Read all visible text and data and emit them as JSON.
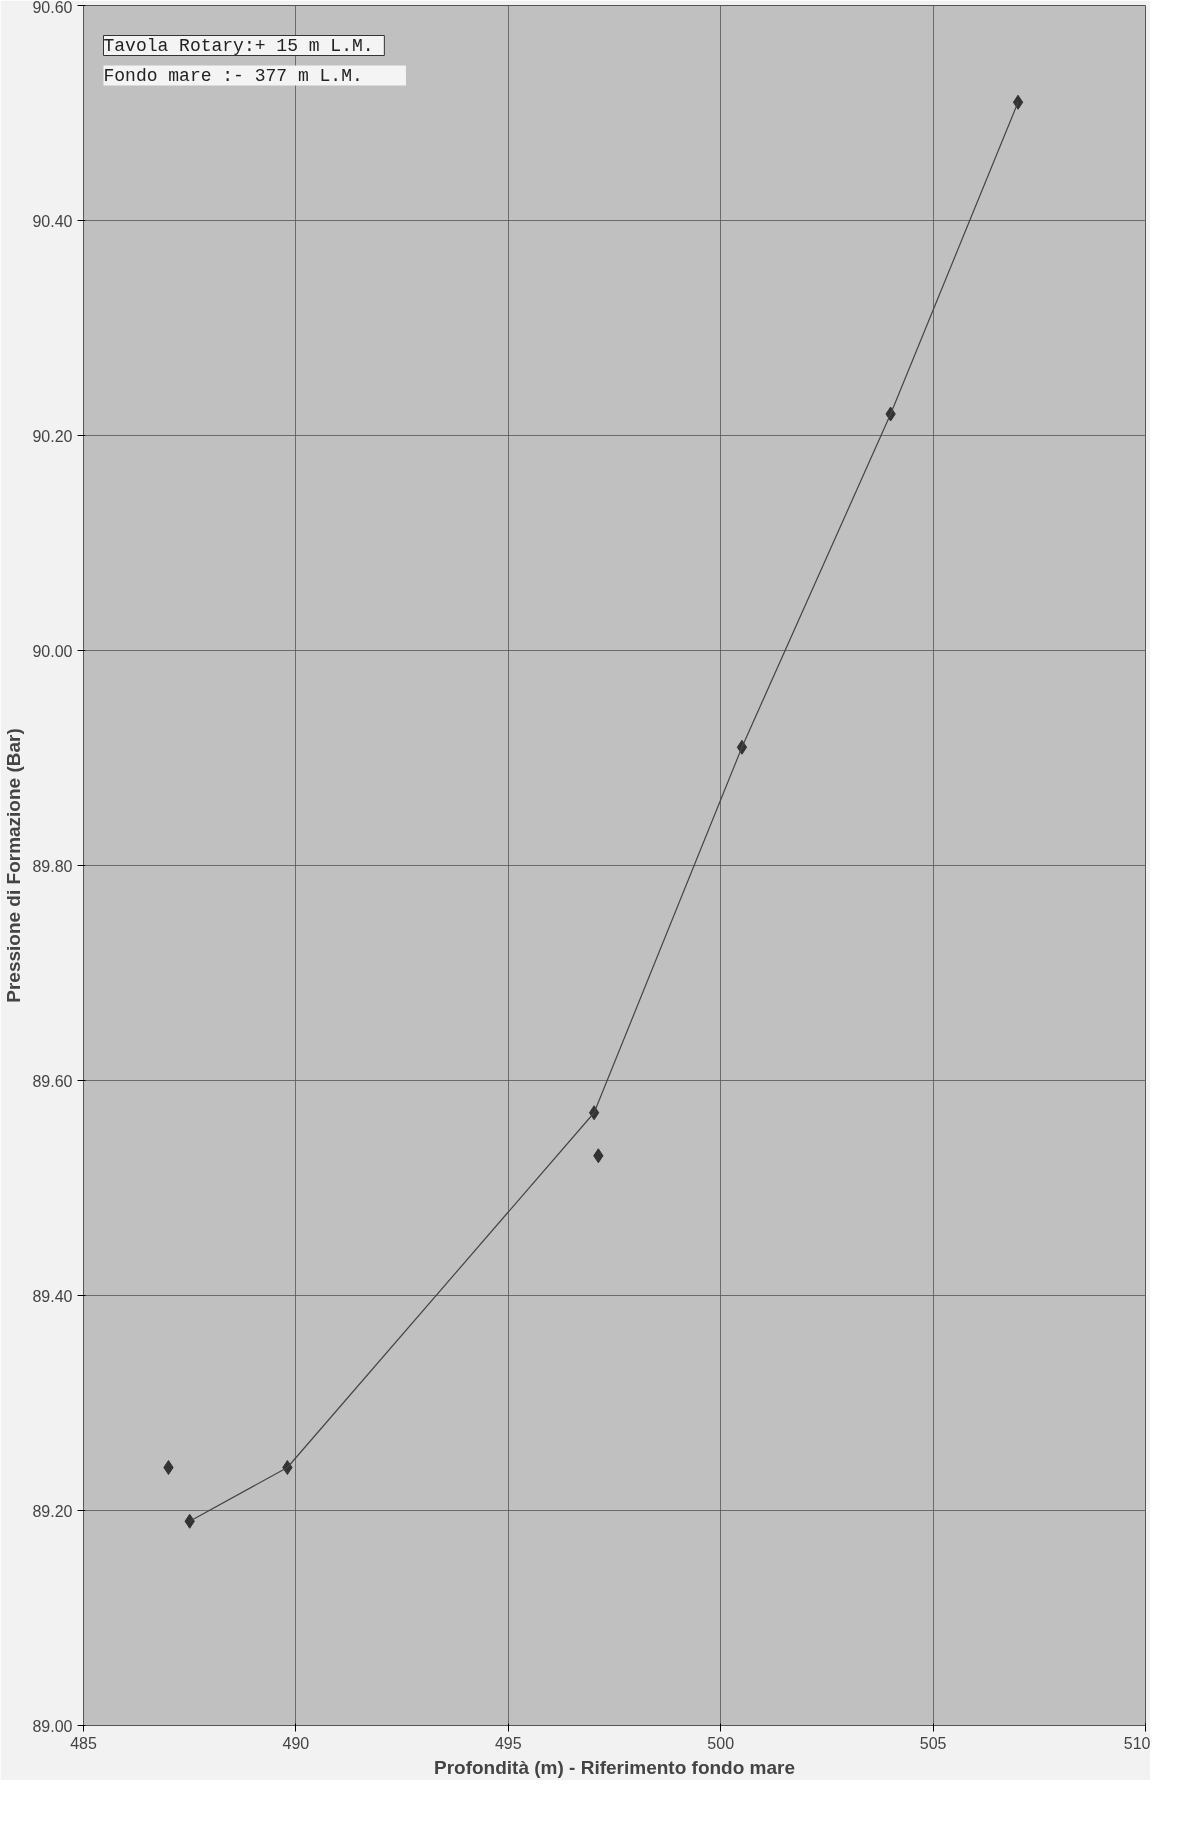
{
  "chart_data": {
    "type": "scatter",
    "ylabel": "Pressione di Formazione (Bar)",
    "xlabel": "Profondità (m) - Riferimento fondo mare",
    "annotations": [
      "Tavola Rotary:+  15 m L.M.",
      "Fondo mare    :-  377 m L.M."
    ],
    "xlim": [
      485,
      510
    ],
    "xticks": [
      485,
      490,
      495,
      500,
      505,
      510
    ],
    "ylim": [
      89.0,
      90.6
    ],
    "yticks": [
      {
        "value": 89.0,
        "label": "89.00"
      },
      {
        "value": 89.2,
        "label": "89.20"
      },
      {
        "value": 89.4,
        "label": "89.40"
      },
      {
        "value": 89.6,
        "label": "89.60"
      },
      {
        "value": 89.8,
        "label": "89.80"
      },
      {
        "value": 90.0,
        "label": "90.00"
      },
      {
        "value": 90.2,
        "label": "90.20"
      },
      {
        "value": 90.4,
        "label": "90.40"
      },
      {
        "value": 90.6,
        "label": "90.60"
      }
    ],
    "grid": true,
    "series": [
      {
        "marker": "diamond",
        "color": "#333333",
        "x": [
          487.0,
          487.5,
          489.8,
          497.02,
          497.12,
          500.5,
          504.0,
          507.0
        ],
        "values": [
          89.24,
          89.19,
          89.24,
          89.57,
          89.53,
          89.91,
          90.22,
          90.51
        ]
      },
      {
        "type": "line",
        "color": "#444444",
        "line_style": "solid",
        "x": [
          487.5,
          489.8,
          497.02,
          500.5,
          504.0,
          507.0
        ],
        "values": [
          89.19,
          89.24,
          89.57,
          89.91,
          90.22,
          90.51
        ]
      }
    ]
  }
}
